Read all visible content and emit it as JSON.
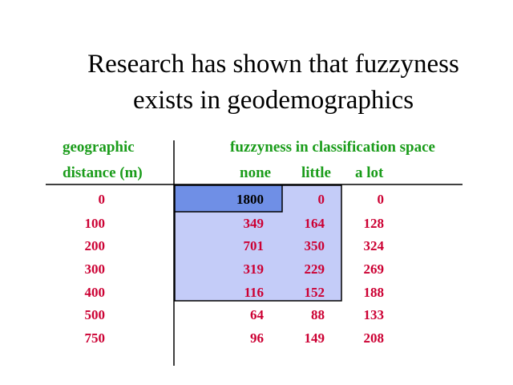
{
  "title": [
    "Research has shown that fuzzyness",
    "exists in geodemographics"
  ],
  "table": {
    "row_header": [
      "geographic",
      "distance (m)"
    ],
    "column_group": "fuzzyness in classification space",
    "columns": [
      "none",
      "little",
      "a lot"
    ],
    "rows": [
      [
        0,
        1800,
        0,
        0
      ],
      [
        100,
        349,
        164,
        128
      ],
      [
        200,
        701,
        350,
        324
      ],
      [
        300,
        319,
        229,
        269
      ],
      [
        400,
        116,
        152,
        188
      ],
      [
        500,
        64,
        88,
        133
      ],
      [
        750,
        96,
        149,
        208
      ]
    ]
  }
}
